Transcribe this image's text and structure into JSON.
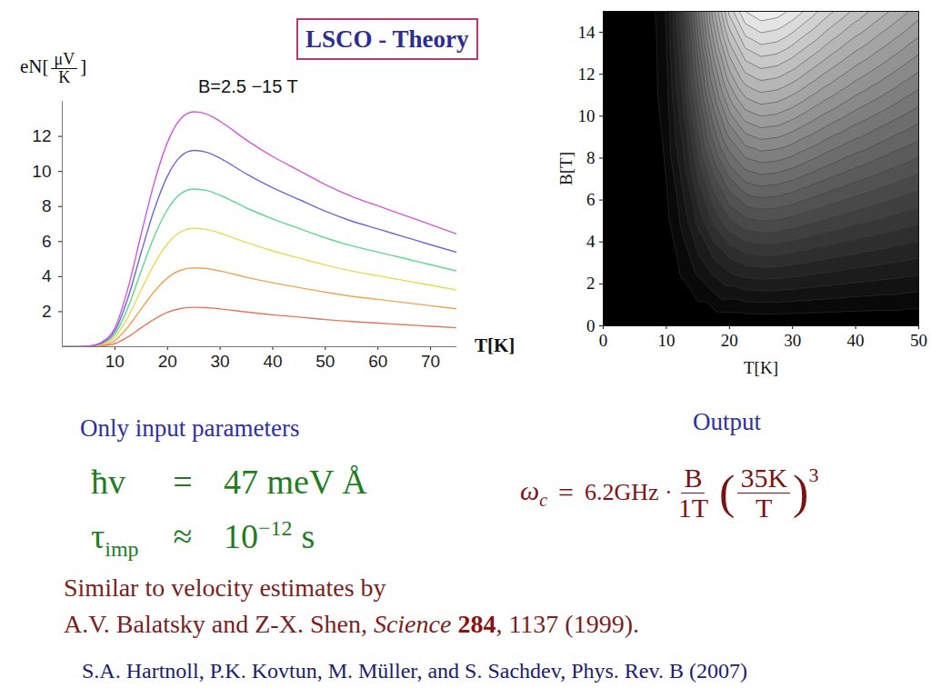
{
  "chart_data": [
    {
      "type": "line",
      "title": "B=2.5 −15 T",
      "xlabel": "T[K]",
      "ylabel": {
        "text": "eN[",
        "numerator": "μV",
        "denominator": "K",
        "close": "]"
      },
      "x": [
        0,
        2.5,
        5,
        7.5,
        10,
        12.5,
        15,
        17.5,
        20,
        22.5,
        25,
        27.5,
        30,
        35,
        40,
        45,
        50,
        55,
        60,
        65,
        70,
        75
      ],
      "series": [
        {
          "color": "#e8765a",
          "values": [
            0,
            0,
            0.01,
            0.05,
            0.18,
            0.56,
            1.08,
            1.58,
            1.96,
            2.18,
            2.25,
            2.23,
            2.16,
            1.98,
            1.82,
            1.69,
            1.55,
            1.44,
            1.35,
            1.26,
            1.17,
            1.08
          ]
        },
        {
          "color": "#f2a456",
          "values": [
            0,
            0,
            0.01,
            0.09,
            0.36,
            1.13,
            2.16,
            3.15,
            3.92,
            4.37,
            4.5,
            4.46,
            4.32,
            3.96,
            3.65,
            3.38,
            3.11,
            2.88,
            2.7,
            2.52,
            2.34,
            2.16
          ]
        },
        {
          "color": "#e6dc58",
          "values": [
            0,
            0,
            0.02,
            0.14,
            0.54,
            1.69,
            3.24,
            4.73,
            5.87,
            6.55,
            6.75,
            6.68,
            6.48,
            5.94,
            5.47,
            5.06,
            4.66,
            4.32,
            4.05,
            3.78,
            3.51,
            3.24
          ]
        },
        {
          "color": "#5ed88e",
          "values": [
            0,
            0,
            0.03,
            0.18,
            0.72,
            2.25,
            4.32,
            6.3,
            7.83,
            8.73,
            9,
            8.91,
            8.64,
            7.92,
            7.29,
            6.75,
            6.21,
            5.76,
            5.4,
            5.04,
            4.68,
            4.32
          ]
        },
        {
          "color": "#6a6ad6",
          "values": [
            0,
            0,
            0.03,
            0.22,
            0.9,
            2.8,
            5.38,
            7.84,
            9.74,
            10.86,
            11.2,
            11.09,
            10.75,
            9.86,
            9.07,
            8.4,
            7.73,
            7.17,
            6.72,
            6.27,
            5.82,
            5.38
          ]
        },
        {
          "color": "#d457d8",
          "values": [
            0,
            0,
            0.04,
            0.27,
            1.07,
            3.35,
            6.43,
            9.38,
            11.66,
            13.0,
            13.4,
            13.27,
            12.86,
            11.79,
            10.85,
            10.05,
            9.25,
            8.58,
            8.04,
            7.5,
            6.97,
            6.43
          ]
        }
      ],
      "xlim": [
        0,
        75
      ],
      "ylim": [
        0,
        14
      ],
      "xticks": [
        10,
        20,
        30,
        40,
        50,
        60,
        70
      ],
      "yticks": [
        2,
        4,
        6,
        8,
        10,
        12
      ]
    },
    {
      "type": "contour",
      "xlabel": "T[K]",
      "ylabel": "B[T]",
      "xlim": [
        0,
        50
      ],
      "ylim": [
        0,
        15
      ],
      "xticks": [
        0,
        10,
        20,
        30,
        40,
        50
      ],
      "yticks": [
        0,
        2,
        4,
        6,
        8,
        10,
        12,
        14
      ],
      "cells": {
        "x": [
          0,
          2.5,
          5,
          7.5,
          10,
          12.5,
          15,
          17.5,
          20,
          22.5,
          25,
          27.5,
          30,
          32.5,
          35,
          37.5,
          40,
          42.5,
          45,
          47.5,
          50
        ],
        "y": [
          0,
          2.5,
          5,
          7.5,
          10,
          12.5,
          15
        ],
        "values": [
          [
            0,
            0,
            0,
            0,
            0,
            0,
            0,
            0,
            0,
            0,
            0,
            0,
            0,
            0,
            0,
            0,
            0,
            0,
            0,
            0,
            0
          ],
          [
            0,
            0,
            0.01,
            0.05,
            0.18,
            0.56,
            1.08,
            1.58,
            1.96,
            2.18,
            2.25,
            2.23,
            2.16,
            2.07,
            1.98,
            1.9,
            1.82,
            1.76,
            1.69,
            1.62,
            1.55
          ],
          [
            0,
            0,
            0.01,
            0.09,
            0.36,
            1.13,
            2.16,
            3.15,
            3.92,
            4.37,
            4.5,
            4.46,
            4.32,
            4.14,
            3.96,
            3.8,
            3.65,
            3.51,
            3.38,
            3.24,
            3.11
          ],
          [
            0,
            0,
            0.02,
            0.14,
            0.54,
            1.69,
            3.24,
            4.73,
            5.87,
            6.55,
            6.75,
            6.68,
            6.48,
            6.21,
            5.94,
            5.7,
            5.47,
            5.27,
            5.06,
            4.86,
            4.66
          ],
          [
            0,
            0,
            0.03,
            0.18,
            0.72,
            2.25,
            4.32,
            6.3,
            7.83,
            8.73,
            9,
            8.91,
            8.64,
            8.28,
            7.92,
            7.61,
            7.29,
            7.02,
            6.75,
            6.48,
            6.21
          ],
          [
            0,
            0,
            0.03,
            0.22,
            0.9,
            2.8,
            5.38,
            7.84,
            9.74,
            10.86,
            11.2,
            11.09,
            10.75,
            10.3,
            9.86,
            9.46,
            9.07,
            8.74,
            8.4,
            8.06,
            7.73
          ],
          [
            0,
            0,
            0.04,
            0.27,
            1.07,
            3.35,
            6.43,
            9.38,
            11.66,
            13.0,
            13.4,
            13.27,
            12.86,
            12.33,
            11.79,
            11.32,
            10.85,
            10.45,
            10.05,
            9.65,
            9.25
          ]
        ]
      }
    }
  ],
  "slide": {
    "header": "LSCO - Theory",
    "inputs_heading": "Only input parameters",
    "output_heading": "Output",
    "inputs": [
      {
        "symbol": "ħv",
        "relation": "=",
        "value": "47 meV Å"
      },
      {
        "symbol": "τ",
        "symbol_sub": "imp",
        "relation": "≈",
        "value": "10",
        "value_sup": "−12",
        "unit": "s"
      }
    ],
    "output_formula": {
      "symbol": "ω",
      "symbol_sub": "c",
      "relation": "=",
      "coefficient": "6.2GHz ·",
      "numerator": "B",
      "denominator": "1T",
      "paren_open": "(",
      "paren_numerator": "35K",
      "paren_denominator": "T",
      "paren_close": ")",
      "exponent": "3"
    },
    "note": "Similar to velocity estimates by",
    "reference": [
      {
        "text": "A.V. Balatsky and Z-X. Shen, "
      },
      {
        "text": "Science",
        "italic": true
      },
      {
        "text": " "
      },
      {
        "text": "284",
        "bold": true
      },
      {
        "text": ", 1137 (1999)."
      }
    ],
    "citation": "S.A. Hartnoll, P.K. Kovtun, M. Müller, and S. Sachdev, Phys. Rev. B (2007)"
  }
}
